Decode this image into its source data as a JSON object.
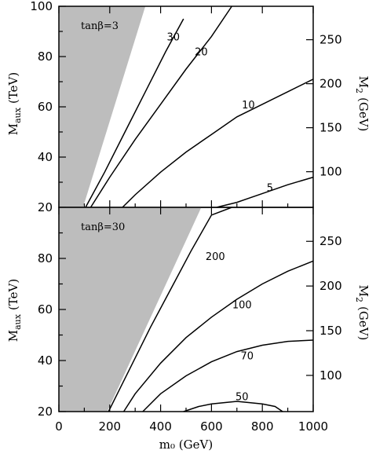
{
  "chart_data": [
    {
      "type": "line",
      "panel_label": "tanβ=3",
      "xlabel": "m₀ (GeV)",
      "ylabel": "M_aux (TeV)",
      "ylabel_main": "M",
      "ylabel_sub": "aux",
      "ylabel_unit": "(TeV)",
      "y2label_main": "M",
      "y2label_sub": "2",
      "y2label_unit": "(GeV)",
      "xlim": [
        0,
        1000
      ],
      "ylim": [
        20,
        100
      ],
      "y2lim": [
        59.5,
        288
      ],
      "y_ticks": [
        "20",
        "40",
        "60",
        "80",
        "100"
      ],
      "y2_ticks": [
        "100",
        "150",
        "200",
        "250"
      ],
      "y2_tick_values": [
        100,
        150,
        200,
        250
      ],
      "shaded_region": [
        [
          0,
          20
        ],
        [
          0,
          100
        ],
        [
          340,
          100
        ],
        [
          95,
          20
        ]
      ],
      "series": [
        {
          "name": "30",
          "x": [
            105,
            180,
            260,
            340,
            420,
            490
          ],
          "y": [
            20,
            34,
            50,
            66,
            82,
            95
          ]
        },
        {
          "name": "20",
          "x": [
            125,
            200,
            300,
            400,
            500,
            600,
            680
          ],
          "y": [
            20,
            32,
            47,
            61,
            75,
            88,
            100
          ]
        },
        {
          "name": "10",
          "x": [
            250,
            300,
            400,
            500,
            600,
            700,
            800,
            900,
            1000
          ],
          "y": [
            20,
            25,
            34,
            42,
            49,
            56,
            61,
            66,
            71
          ]
        },
        {
          "name": "5",
          "x": [
            620,
            700,
            800,
            900,
            1000
          ],
          "y": [
            20,
            22,
            25.5,
            29,
            32
          ]
        }
      ],
      "annotations": [
        {
          "text": "30",
          "x": 450,
          "y": 88
        },
        {
          "text": "20",
          "x": 560,
          "y": 82
        },
        {
          "text": "10",
          "x": 745,
          "y": 61
        },
        {
          "text": "5",
          "x": 830,
          "y": 28
        }
      ]
    },
    {
      "type": "line",
      "panel_label": "tanβ=30",
      "xlabel": "m₀ (GeV)",
      "ylabel": "M_aux (TeV)",
      "xlim": [
        0,
        1000
      ],
      "ylim": [
        20,
        100
      ],
      "y2lim": [
        59.5,
        288
      ],
      "x_ticks": [
        "0",
        "200",
        "400",
        "600",
        "800",
        "1000"
      ],
      "x_tick_values": [
        0,
        200,
        400,
        600,
        800,
        1000
      ],
      "y_ticks": [
        "20",
        "40",
        "60",
        "80"
      ],
      "y2_ticks": [
        "100",
        "150",
        "200",
        "250"
      ],
      "y2_tick_values": [
        100,
        150,
        200,
        250
      ],
      "shaded_region": [
        [
          0,
          20
        ],
        [
          0,
          100
        ],
        [
          560,
          100
        ],
        [
          190,
          20
        ]
      ],
      "series": [
        {
          "name": "200",
          "x": [
            195,
            280,
            360,
            440,
            520,
            600,
            680
          ],
          "y": [
            20,
            37,
            53,
            68,
            83,
            97,
            100
          ]
        },
        {
          "name": "100",
          "x": [
            255,
            300,
            400,
            500,
            600,
            700,
            800,
            900,
            1000
          ],
          "y": [
            20,
            27,
            39,
            49,
            57,
            64,
            70,
            75,
            79
          ]
        },
        {
          "name": "70",
          "x": [
            330,
            400,
            500,
            600,
            700,
            800,
            900,
            1000
          ],
          "y": [
            20,
            27,
            34,
            39.5,
            43.5,
            46,
            47.5,
            48
          ]
        },
        {
          "name": "50",
          "x": [
            490,
            550,
            600,
            700,
            800,
            850,
            880
          ],
          "y": [
            20,
            22,
            23,
            24,
            23,
            22,
            20
          ]
        }
      ],
      "annotations": [
        {
          "text": "200",
          "x": 615,
          "y": 81
        },
        {
          "text": "100",
          "x": 720,
          "y": 62
        },
        {
          "text": "70",
          "x": 740,
          "y": 42
        },
        {
          "text": "50",
          "x": 720,
          "y": 26
        }
      ]
    }
  ]
}
